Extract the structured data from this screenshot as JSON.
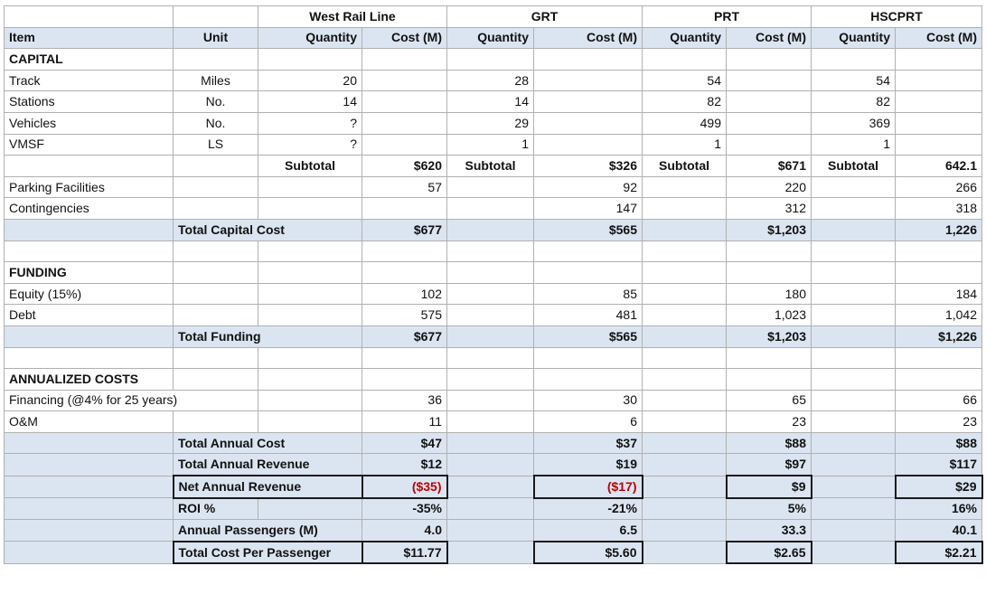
{
  "groups": {
    "west": "West Rail Line",
    "grt": "GRT",
    "prt": "PRT",
    "hsc": "HSCPRT"
  },
  "columns": {
    "item": "Item",
    "unit": "Unit",
    "quantity": "Quantity",
    "cost": "Cost (M)"
  },
  "sections": {
    "capital": "CAPITAL",
    "funding": "FUNDING",
    "annual": "ANNUALIZED COSTS"
  },
  "capital": {
    "track": {
      "item": "Track",
      "unit": "Miles",
      "wq": "20",
      "gq": "28",
      "pq": "54",
      "hq": "54"
    },
    "stations": {
      "item": "Stations",
      "unit": "No.",
      "wq": "14",
      "gq": "14",
      "pq": "82",
      "hq": "82"
    },
    "vehicles": {
      "item": "Vehicles",
      "unit": "No.",
      "wq": "?",
      "gq": "29",
      "pq": "499",
      "hq": "369"
    },
    "vmsf": {
      "item": "VMSF",
      "unit": "LS",
      "wq": "?",
      "gq": "1",
      "pq": "1",
      "hq": "1"
    },
    "subtotal": {
      "label": "Subtotal",
      "w": "$620",
      "g": "$326",
      "p": "$671",
      "h": "642.1"
    },
    "parking": {
      "item": "Parking Facilities",
      "w": "57",
      "g": "92",
      "p": "220",
      "h": "266"
    },
    "contingencies": {
      "item": "Contingencies",
      "w": "",
      "g": "147",
      "p": "312",
      "h": "318"
    },
    "total": {
      "label": "Total Capital Cost",
      "w": "$677",
      "g": "$565",
      "p": "$1,203",
      "h": "1,226"
    }
  },
  "funding": {
    "equity": {
      "item": "Equity (15%)",
      "w": "102",
      "g": "85",
      "p": "180",
      "h": "184"
    },
    "debt": {
      "item": "Debt",
      "w": "575",
      "g": "481",
      "p": "1,023",
      "h": "1,042"
    },
    "total": {
      "label": "Total Funding",
      "w": "$677",
      "g": "$565",
      "p": "$1,203",
      "h": "$1,226"
    }
  },
  "annual": {
    "financing": {
      "item": "Financing (@4% for 25 years)",
      "w": "36",
      "g": "30",
      "p": "65",
      "h": "66"
    },
    "om": {
      "item": "O&M",
      "w": "11",
      "g": "6",
      "p": "23",
      "h": "23"
    },
    "total_cost": {
      "label": "Total Annual Cost",
      "w": "$47",
      "g": "$37",
      "p": "$88",
      "h": "$88"
    },
    "total_revenue": {
      "label": "Total Annual Revenue",
      "w": "$12",
      "g": "$19",
      "p": "$97",
      "h": "$117"
    },
    "net_revenue": {
      "label": "Net Annual Revenue",
      "w": "($35)",
      "g": "($17)",
      "p": "$9",
      "h": "$29"
    },
    "roi": {
      "label": "ROI %",
      "w": "-35%",
      "g": "-21%",
      "p": "5%",
      "h": "16%"
    },
    "passengers": {
      "label": "Annual Passengers (M)",
      "w": "4.0",
      "g": "6.5",
      "p": "33.3",
      "h": "40.1"
    },
    "cost_per": {
      "label": "Total Cost Per Passenger",
      "w": "$11.77",
      "g": "$5.60",
      "p": "$2.65",
      "h": "$2.21"
    }
  },
  "colors": {
    "shade": "#dbe5f1",
    "negative": "#c00000",
    "grid": "#b0b0b0"
  }
}
